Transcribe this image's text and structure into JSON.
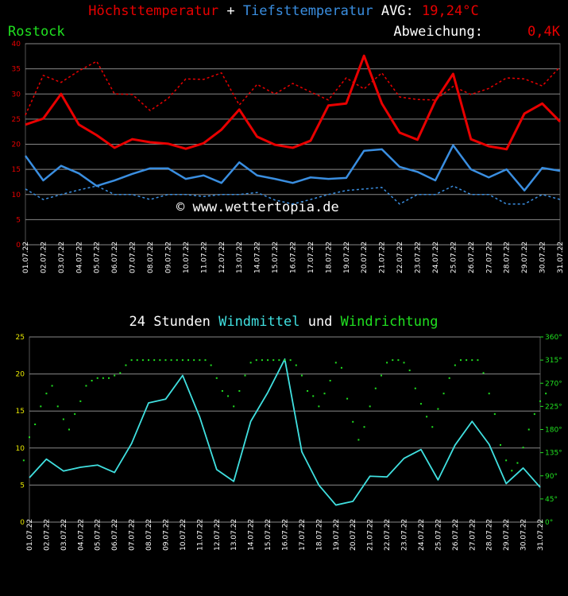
{
  "chart_data": [
    {
      "type": "line",
      "title_joiner": "+",
      "avg_label": "AVG:",
      "avg_value": "19,24°C",
      "location": "Rostock",
      "deviation_label": "Abweichung:",
      "deviation_value": "0,4K",
      "watermark": "© www.wettertopia.de",
      "categories": [
        "01.07.22",
        "02.07.22",
        "03.07.22",
        "04.07.22",
        "05.07.22",
        "06.07.22",
        "07.07.22",
        "08.07.22",
        "09.07.22",
        "10.07.22",
        "11.07.22",
        "12.07.22",
        "13.07.22",
        "14.07.22",
        "15.07.22",
        "16.07.22",
        "17.07.22",
        "18.07.22",
        "19.07.22",
        "20.07.22",
        "21.07.22",
        "22.07.22",
        "23.07.22",
        "24.07.22",
        "25.07.22",
        "26.07.22",
        "27.07.22",
        "28.07.22",
        "29.07.22",
        "30.07.22",
        "31.07.22"
      ],
      "ylim": [
        0,
        40
      ],
      "yticks": [
        0,
        5,
        10,
        15,
        20,
        25,
        30,
        35,
        40
      ],
      "grid": true,
      "series": [
        {
          "name": "Höchsttemperatur",
          "color": "#e80000",
          "style": "solid",
          "values": [
            23.9,
            25.1,
            30.0,
            23.9,
            21.8,
            19.3,
            21.0,
            20.4,
            20.1,
            19.1,
            20.2,
            22.9,
            26.9,
            21.5,
            19.9,
            19.3,
            20.7,
            27.7,
            28.1,
            37.6,
            28.1,
            22.3,
            20.9,
            28.6,
            34.0,
            21.0,
            19.6,
            19.0,
            26.1,
            28.1,
            24.5
          ]
        },
        {
          "name": "Tiefsttemperatur",
          "color": "#3a8ee0",
          "style": "solid",
          "values": [
            17.7,
            12.8,
            15.7,
            14.2,
            11.7,
            12.8,
            14.1,
            15.2,
            15.2,
            13.1,
            13.8,
            12.3,
            16.4,
            13.8,
            13.1,
            12.3,
            13.4,
            13.1,
            13.3,
            18.7,
            19.0,
            15.5,
            14.5,
            12.8,
            19.8,
            15.0,
            13.4,
            15.0,
            10.8,
            15.3,
            14.7
          ]
        },
        {
          "color": "#e80000",
          "style": "dotted",
          "values": [
            25.8,
            33.7,
            32.3,
            34.6,
            36.5,
            30.0,
            29.9,
            26.7,
            29.1,
            33.0,
            32.9,
            34.2,
            27.8,
            31.9,
            30.0,
            32.1,
            30.4,
            28.8,
            33.2,
            31.0,
            34.2,
            29.4,
            28.9,
            28.8,
            31.5,
            29.9,
            31.1,
            33.2,
            33.0,
            31.6,
            35.4
          ]
        },
        {
          "color": "#3a8ee0",
          "style": "dotted",
          "values": [
            11.1,
            9.0,
            10.0,
            10.9,
            11.7,
            10.0,
            10.0,
            9.0,
            10.0,
            10.0,
            9.6,
            10.0,
            10.0,
            10.4,
            8.9,
            8.1,
            9.0,
            10.0,
            10.8,
            11.1,
            11.4,
            8.1,
            10.0,
            10.0,
            11.7,
            10.0,
            10.0,
            8.1,
            8.1,
            10.0,
            9.0
          ]
        }
      ]
    },
    {
      "type": "line",
      "title_prefix": "24 Stunden",
      "title_joiner": "und",
      "categories": [
        "01.07.22",
        "02.07.22",
        "03.07.22",
        "04.07.22",
        "05.07.22",
        "06.07.22",
        "07.07.22",
        "08.07.22",
        "09.07.22",
        "10.07.22",
        "11.07.22",
        "12.07.22",
        "13.07.22",
        "14.07.22",
        "15.07.22",
        "16.07.22",
        "17.07.22",
        "18.07.22",
        "19.07.22",
        "20.07.22",
        "21.07.22",
        "22.07.22",
        "23.07.22",
        "24.07.22",
        "25.07.22",
        "26.07.22",
        "27.07.22",
        "28.07.22",
        "29.07.22",
        "30.07.22",
        "31.07.22"
      ],
      "ylim": [
        0,
        25
      ],
      "yticks": [
        0,
        5,
        10,
        15,
        20,
        25
      ],
      "grid": true,
      "y2lim": [
        0,
        360
      ],
      "y2ticks": [
        {
          "value": 0,
          "label": "0°"
        },
        {
          "value": 45,
          "label": "45°"
        },
        {
          "value": 90,
          "label": "90°"
        },
        {
          "value": 135,
          "label": "135°"
        },
        {
          "value": 180,
          "label": "180°"
        },
        {
          "value": 225,
          "label": "225°"
        },
        {
          "value": 270,
          "label": "270°"
        },
        {
          "value": 315,
          "label": "315°"
        },
        {
          "value": 360,
          "label": "360°"
        }
      ],
      "series": [
        {
          "name": "Windmittel",
          "color": "#40e0e0",
          "type": "line",
          "values": [
            6.0,
            8.5,
            6.9,
            7.4,
            7.7,
            6.7,
            10.6,
            16.1,
            16.6,
            19.8,
            14.2,
            7.1,
            5.5,
            13.6,
            17.5,
            22.0,
            9.5,
            5.0,
            2.3,
            2.8,
            6.2,
            6.1,
            8.6,
            9.8,
            5.7,
            10.4,
            13.6,
            10.5,
            5.2,
            7.3,
            4.7
          ]
        },
        {
          "name": "Windrichtung",
          "color": "#20e020",
          "type": "scatter",
          "axis": "y2",
          "values": [
            [
              120,
              165,
              190
            ],
            [
              225,
              250,
              265
            ],
            [
              225,
              200,
              180
            ],
            [
              210,
              235,
              265
            ],
            [
              275,
              280,
              280
            ],
            [
              280,
              285,
              290
            ],
            [
              305,
              315,
              315
            ],
            [
              315,
              315,
              315
            ],
            [
              315,
              315,
              315
            ],
            [
              315,
              315,
              315
            ],
            [
              315,
              315,
              315
            ],
            [
              305,
              280,
              255
            ],
            [
              245,
              225,
              255
            ],
            [
              285,
              310,
              315
            ],
            [
              315,
              315,
              315
            ],
            [
              315,
              315,
              315
            ],
            [
              305,
              285,
              255
            ],
            [
              245,
              225,
              250
            ],
            [
              275,
              310,
              300
            ],
            [
              240,
              195,
              160
            ],
            [
              185,
              225,
              260
            ],
            [
              285,
              310,
              315
            ],
            [
              315,
              310,
              295
            ],
            [
              260,
              230,
              205
            ],
            [
              185,
              220,
              250
            ],
            [
              280,
              305,
              315
            ],
            [
              315,
              315,
              315
            ],
            [
              290,
              250,
              210
            ],
            [
              150,
              120,
              100
            ],
            [
              115,
              145,
              180
            ],
            [
              210,
              235,
              250
            ]
          ]
        }
      ]
    }
  ]
}
